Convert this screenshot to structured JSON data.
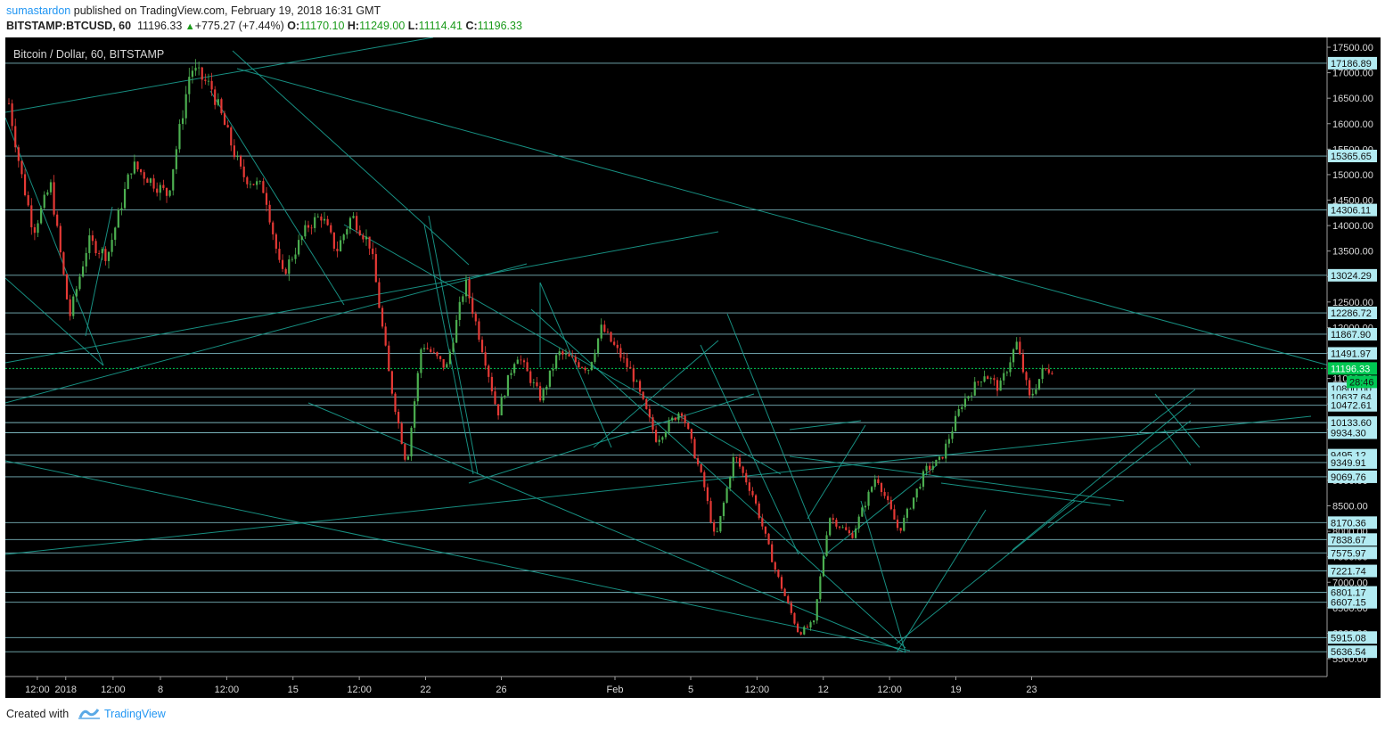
{
  "header": {
    "user": "sumastardon",
    "published": " published on TradingView.com, February 19, 2018 16:31 GMT",
    "symbol": "BITSTAMP:BTCUSD, 60",
    "last": "11196.33",
    "change": "+775.27 (+7.44%)",
    "o_label": "O:",
    "o_value": "11170.10",
    "h_label": "H:",
    "h_value": "11249.00",
    "l_label": "L:",
    "l_value": "11114.41",
    "c_label": "C:",
    "c_value": "11196.33"
  },
  "chart_title": "Bitcoin / Dollar, 60, BITSTAMP",
  "footer": {
    "created": "Created with",
    "brand": "TradingView"
  },
  "colors": {
    "background": "#000000",
    "up_candle": "#4caf50",
    "down_candle": "#e53935",
    "drawing": "#1a9e8f",
    "price_line": "#00c853",
    "axis_label_bg": "#b2ebf2"
  },
  "chart_data": {
    "type": "candlestick",
    "title": "Bitcoin / Dollar, 60, BITSTAMP",
    "interval": "60",
    "y_ticks": [
      "17500.00",
      "17000.00",
      "16500.00",
      "16000.00",
      "15500.00",
      "15000.00",
      "14500.00",
      "14000.00",
      "13500.00",
      "13000.00",
      "12500.00",
      "12000.00",
      "11500.00",
      "11000.00",
      "10500.00",
      "10000.00",
      "9500.00",
      "9000.00",
      "8500.00",
      "8000.00",
      "7500.00",
      "7000.00",
      "6500.00",
      "6000.00",
      "5500.00"
    ],
    "x_ticks": [
      {
        "label": "12:00",
        "day": 1.5
      },
      {
        "label": "2018",
        "day": 3
      },
      {
        "label": "12:00",
        "day": 5.5
      },
      {
        "label": "8",
        "day": 8
      },
      {
        "label": "12:00",
        "day": 11.5
      },
      {
        "label": "15",
        "day": 15
      },
      {
        "label": "12:00",
        "day": 18.5
      },
      {
        "label": "22",
        "day": 22
      },
      {
        "label": "26",
        "day": 26
      },
      {
        "label": "Feb",
        "day": 32
      },
      {
        "label": "5",
        "day": 36
      },
      {
        "label": "12:00",
        "day": 39.5
      },
      {
        "label": "12",
        "day": 43
      },
      {
        "label": "12:00",
        "day": 46.5
      },
      {
        "label": "19",
        "day": 50
      },
      {
        "label": "23",
        "day": 54
      }
    ],
    "level_lines": [
      "17186.89",
      "15365.65",
      "14306.11",
      "13024.29",
      "12286.72",
      "11867.90",
      "11491.97",
      "10800.00",
      "10637.64",
      "10472.61",
      "10133.60",
      "9934.30",
      "9495.12",
      "9349.91",
      "9069.76",
      "8170.36",
      "7838.67",
      "7575.97",
      "7221.74",
      "6801.17",
      "6607.15",
      "5915.08",
      "5636.54"
    ],
    "current_price": "11196.33",
    "countdown": "28:46",
    "path_keypoints": [
      [
        0,
        16400
      ],
      [
        0.6,
        15100
      ],
      [
        1.3,
        13900
      ],
      [
        2.2,
        14800
      ],
      [
        3.2,
        12200
      ],
      [
        4.2,
        13700
      ],
      [
        5.2,
        13400
      ],
      [
        6.5,
        15200
      ],
      [
        8.4,
        14600
      ],
      [
        9.6,
        17100
      ],
      [
        10.7,
        16700
      ],
      [
        12.3,
        15000
      ],
      [
        13.5,
        14700
      ],
      [
        14.4,
        13000
      ],
      [
        15.8,
        14000
      ],
      [
        16.5,
        14200
      ],
      [
        17.3,
        13500
      ],
      [
        18.1,
        14200
      ],
      [
        19.1,
        13600
      ],
      [
        20.1,
        11000
      ],
      [
        21.0,
        9300
      ],
      [
        21.8,
        11700
      ],
      [
        23.1,
        11200
      ],
      [
        24.1,
        12900
      ],
      [
        25.2,
        11300
      ],
      [
        25.8,
        10300
      ],
      [
        26.8,
        11500
      ],
      [
        28.1,
        10600
      ],
      [
        29.0,
        11500
      ],
      [
        30.6,
        11200
      ],
      [
        31.3,
        12000
      ],
      [
        32.9,
        11100
      ],
      [
        34.2,
        9800
      ],
      [
        35.5,
        10400
      ],
      [
        36.7,
        8900
      ],
      [
        37.3,
        7800
      ],
      [
        38.3,
        9500
      ],
      [
        39.3,
        8700
      ],
      [
        40.5,
        7200
      ],
      [
        41.7,
        6000
      ],
      [
        42.5,
        6200
      ],
      [
        43.3,
        8300
      ],
      [
        44.5,
        7900
      ],
      [
        45.8,
        9100
      ],
      [
        47.0,
        8000
      ],
      [
        48.4,
        9200
      ],
      [
        49.2,
        9400
      ],
      [
        50.3,
        10500
      ],
      [
        51.5,
        11100
      ],
      [
        52.3,
        10800
      ],
      [
        53.2,
        11700
      ],
      [
        53.9,
        10600
      ],
      [
        54.6,
        11150
      ],
      [
        55.2,
        11200
      ]
    ]
  }
}
